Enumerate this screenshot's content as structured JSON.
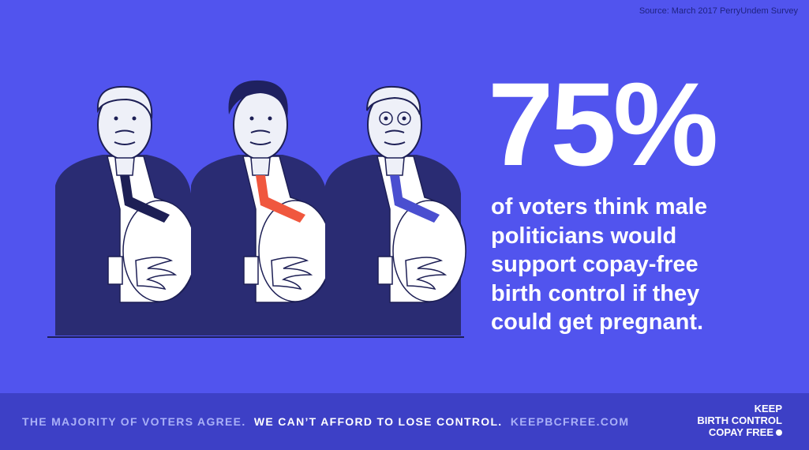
{
  "source": "Source: March 2017 PerryUndem Survey",
  "headline": {
    "stat": "75%",
    "lines": [
      "of voters think male",
      "politicians would",
      "support copay-free",
      "birth control if they",
      "could get pregnant."
    ]
  },
  "footer": {
    "muted_text": "THE MAJORITY OF VOTERS AGREE.",
    "bold_text": "WE CAN’T AFFORD TO LOSE CONTROL.",
    "link": "KEEPBCFREE.COM"
  },
  "logo": {
    "lines": [
      "KEEP",
      "BIRTH CONTROL",
      "COPAY FREE"
    ]
  }
}
